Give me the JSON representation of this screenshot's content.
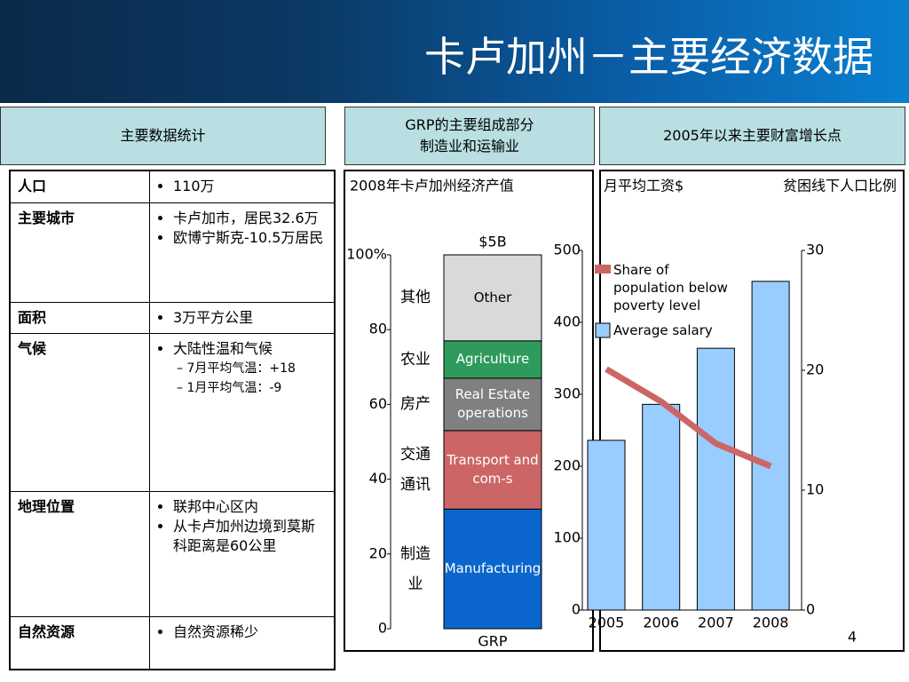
{
  "header": {
    "title": "卡卢加州－主要经济数据",
    "page_number": "4"
  },
  "panels": [
    {
      "lines": [
        "主要数据统计"
      ]
    },
    {
      "lines": [
        "GRP的主要组成部分",
        "制造业和运输业"
      ]
    },
    {
      "lines": [
        "2005年以来主要财富增长点"
      ]
    }
  ],
  "table": {
    "rows": [
      {
        "label": "人口",
        "bullets": [
          "110万"
        ]
      },
      {
        "label": "主要城市",
        "bullets": [
          "卡卢加市，居民32.6万",
          "欧博宁斯克-10.5万居民"
        ]
      },
      {
        "label": "面积",
        "bullets": [
          "3万平方公里"
        ]
      },
      {
        "label": "气候",
        "bullets": [
          "大陆性温和气候"
        ],
        "sub_bullets": [
          "7月平均气温：+18",
          "1月平均气温：-9"
        ]
      },
      {
        "label": "地理位置",
        "bullets": [
          "联邦中心区内",
          "从卡卢加州边境到莫斯科距离是60公里"
        ]
      },
      {
        "label": "自然资源",
        "bullets": [
          "自然资源稀少"
        ]
      }
    ]
  },
  "chart_data": [
    {
      "type": "stacked_bar",
      "title": "2008年卡卢加州经济产值",
      "categories": [
        "GRP"
      ],
      "total_label": "$5B",
      "ylim": [
        0,
        100
      ],
      "yticks": [
        0,
        20,
        40,
        60,
        80,
        {
          "value": 100,
          "label": "100%"
        }
      ],
      "series": [
        {
          "name": "Manufacturing",
          "cn_label": "制造业",
          "color": "#0a66cc",
          "text_color": "#ffffff",
          "values": [
            32
          ]
        },
        {
          "name": "Transport and com-s",
          "cn_label": "交通通讯",
          "color": "#cc6666",
          "text_color": "#ffffff",
          "values": [
            21
          ]
        },
        {
          "name": "Real Estate operations",
          "cn_label": "房产",
          "color": "#808080",
          "text_color": "#ffffff",
          "values": [
            14
          ]
        },
        {
          "name": "Agriculture",
          "cn_label": "农业",
          "color": "#2e9b5c",
          "text_color": "#ffffff",
          "values": [
            10
          ]
        },
        {
          "name": "Other",
          "cn_label": "其他",
          "color": "#d9d9d9",
          "text_color": "#000000",
          "values": [
            23
          ]
        }
      ]
    },
    {
      "type": "bar_line",
      "y_label": "月平均工资$",
      "y2_label": "贫困线下人口比例",
      "categories": [
        "2005",
        "2006",
        "2007",
        "2008"
      ],
      "ylim": [
        0,
        500
      ],
      "yticks": [
        0,
        100,
        200,
        300,
        400,
        500
      ],
      "y2lim": [
        0,
        30
      ],
      "y2ticks": [
        0,
        10,
        20,
        30
      ],
      "series": [
        {
          "name": "Average salary",
          "type": "bar",
          "color": "#99ccff",
          "values": [
            236,
            286,
            364,
            457
          ]
        },
        {
          "name": "Share of population below poverty level",
          "type": "line",
          "axis": "y2",
          "color": "#cc6666",
          "values": [
            20.1,
            17.4,
            13.9,
            12.0
          ]
        }
      ]
    }
  ]
}
